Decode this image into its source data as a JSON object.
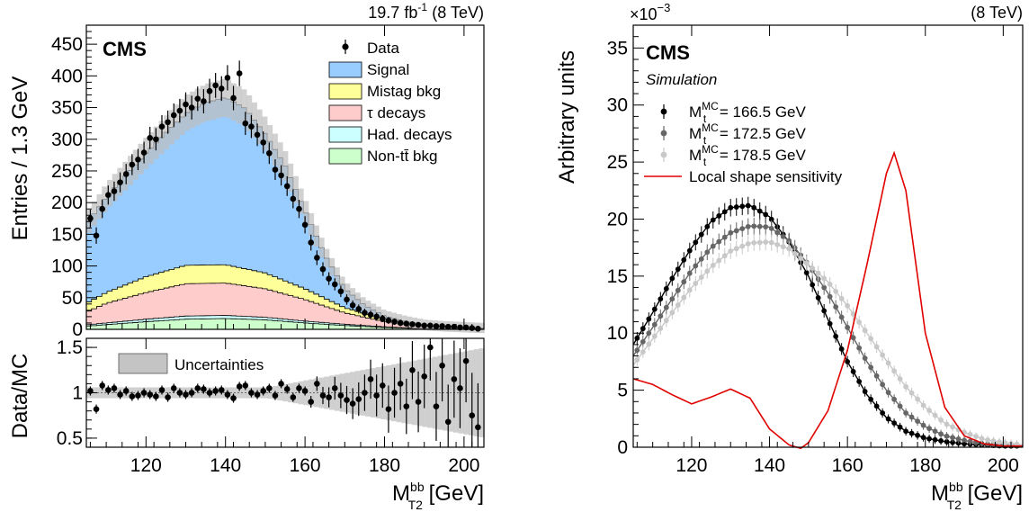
{
  "left": {
    "lumi": "19.7 fb",
    "lumi_sup": "-1",
    "energy": "(8 TeV)",
    "cms": "CMS",
    "ylabel": "Entries / 1.3 GeV",
    "ratio_ylabel": "Data/MC",
    "xlabel_main": "M",
    "xlabel_sup": "bb",
    "xlabel_sub": "T2",
    "xlabel_unit": " [GeV]",
    "ratio_legend": "Uncertainties",
    "legend": [
      {
        "label": "Data",
        "kind": "marker",
        "color": "#000000"
      },
      {
        "label": "Signal",
        "kind": "box",
        "color": "#99ccff"
      },
      {
        "label": "Mistag bkg",
        "kind": "box",
        "color": "#ffff99"
      },
      {
        "label": "τ decays",
        "kind": "box",
        "color": "#ffcccc"
      },
      {
        "label": "Had. decays",
        "kind": "box",
        "color": "#ccffff"
      },
      {
        "label": "Non-tt̄ bkg",
        "kind": "box",
        "color": "#ccffcc"
      }
    ]
  },
  "right": {
    "energy": "(8 TeV)",
    "exponent_base": "×10",
    "exponent_sup": "−3",
    "cms": "CMS",
    "simulation": "Simulation",
    "ylabel": "Arbitrary units",
    "xlabel_main": "M",
    "xlabel_sup": "bb",
    "xlabel_sub": "T2",
    "xlabel_unit": " [GeV]",
    "legend": [
      {
        "pre": "M",
        "sup": "MC",
        "sub": "t",
        "post": " = 166.5 GeV",
        "color": "#000000"
      },
      {
        "pre": "M",
        "sup": "MC",
        "sub": "t",
        "post": " = 172.5 GeV",
        "color": "#666666"
      },
      {
        "pre": "M",
        "sup": "MC",
        "sub": "t",
        "post": " = 178.5 GeV",
        "color": "#c8c8c8"
      },
      {
        "pre": "Local shape sensitivity",
        "sup": "",
        "sub": "",
        "post": "",
        "color": "#e00000"
      }
    ]
  },
  "chart_data": [
    {
      "type": "bar",
      "panel": "main",
      "xlim": [
        105,
        205
      ],
      "ylim": [
        0,
        480
      ],
      "xticks": [
        120,
        140,
        160,
        180,
        200
      ],
      "yticks": [
        0,
        50,
        100,
        150,
        200,
        250,
        300,
        350,
        400,
        450
      ],
      "stack_order": [
        "Non-tt̄ bkg",
        "Had. decays",
        "τ decays",
        "Mistag bkg",
        "Signal"
      ],
      "components": {
        "Non-tt̄ bkg": {
          "color": "#ccffcc",
          "x": [
            105,
            120,
            130,
            140,
            150,
            160,
            170,
            180,
            190,
            205
          ],
          "y": [
            5,
            12,
            16,
            17,
            15,
            10,
            6,
            3,
            1,
            0
          ]
        },
        "Had. decays": {
          "color": "#ccffff",
          "x": [
            105,
            120,
            130,
            140,
            150,
            160,
            170,
            180,
            190,
            205
          ],
          "y": [
            2,
            4,
            5,
            5,
            4,
            3,
            2,
            1,
            0,
            0
          ]
        },
        "τ decays": {
          "color": "#ffcccc",
          "x": [
            105,
            110,
            120,
            130,
            140,
            150,
            160,
            170,
            180,
            190,
            205
          ],
          "y": [
            20,
            31,
            42,
            51,
            51,
            45,
            34,
            18,
            8,
            3,
            1
          ]
        },
        "Mistag bkg": {
          "color": "#ffff99",
          "x": [
            105,
            110,
            120,
            130,
            140,
            150,
            160,
            170,
            180,
            190,
            205
          ],
          "y": [
            14,
            17,
            25,
            29,
            29,
            25,
            17,
            8,
            4,
            2,
            1
          ]
        },
        "Signal": {
          "color": "#99ccff",
          "x": [
            105,
            110,
            115,
            120,
            125,
            130,
            135,
            140,
            145,
            150,
            155,
            160,
            165,
            170,
            175,
            180,
            185,
            190,
            195,
            205
          ],
          "y": [
            124,
            151,
            173,
            195,
            218,
            240,
            256,
            264,
            253,
            219,
            182,
            123,
            68,
            30,
            13,
            5,
            2,
            1,
            0,
            0
          ]
        }
      },
      "data": {
        "name": "Data",
        "x": [
          106,
          107.5,
          109,
          110.5,
          112,
          113.5,
          115,
          116.5,
          118,
          119.5,
          121,
          122.5,
          124,
          125.5,
          127,
          128.5,
          130,
          131.5,
          133,
          134.5,
          136,
          137.5,
          139,
          140.5,
          142,
          143.5,
          145,
          146.5,
          148,
          149.5,
          151,
          152.5,
          154,
          155.5,
          157,
          158.5,
          160,
          161.5,
          163,
          164.5,
          166,
          167.5,
          169,
          170.5,
          172,
          173.5,
          175,
          176.5,
          178,
          179.5,
          181,
          182.5,
          184,
          185.5,
          187,
          188.5,
          190,
          191.5,
          193,
          194.5,
          196,
          197.5,
          199,
          200.5,
          202,
          203.5
        ],
        "y": [
          175,
          148,
          190,
          212,
          218,
          232,
          245,
          260,
          268,
          279,
          302,
          300,
          320,
          327,
          338,
          345,
          355,
          350,
          364,
          360,
          376,
          385,
          380,
          397,
          365,
          404,
          325,
          320,
          307,
          295,
          278,
          252,
          243,
          226,
          206,
          190,
          165,
          137,
          113,
          95,
          80,
          71,
          60,
          47,
          38,
          32,
          26,
          23,
          20,
          17,
          14,
          12,
          10,
          9,
          8,
          7,
          6,
          6,
          5,
          5,
          4,
          4,
          3,
          3,
          2,
          1
        ],
        "err": 14
      }
    },
    {
      "type": "scatter",
      "panel": "ratio",
      "xlim": [
        105,
        205
      ],
      "ylim": [
        0.4,
        1.6
      ],
      "yticks": [
        0.5,
        1,
        1.5
      ],
      "name": "Data/MC",
      "x": [
        106,
        107.5,
        109,
        110.5,
        112,
        113.5,
        115,
        116.5,
        118,
        119.5,
        121,
        122.5,
        124,
        125.5,
        127,
        128.5,
        130,
        131.5,
        133,
        134.5,
        136,
        137.5,
        139,
        140.5,
        142,
        143.5,
        145,
        146.5,
        148,
        149.5,
        151,
        152.5,
        154,
        155.5,
        157,
        158.5,
        160,
        161.5,
        163,
        164.5,
        166,
        167.5,
        169,
        170.5,
        172,
        173.5,
        175,
        176.5,
        178,
        179.5,
        181,
        182.5,
        184,
        185.5,
        187,
        188.5,
        190,
        191.5,
        193,
        194.5,
        196,
        197.5,
        199,
        200.5,
        202,
        203.5
      ],
      "y": [
        1.02,
        0.82,
        1.08,
        1.03,
        1.05,
        0.98,
        1.02,
        0.96,
        0.97,
        1.0,
        0.98,
        0.96,
        1.03,
        0.95,
        1.05,
        1.0,
        0.98,
        1.0,
        1.05,
        1.04,
        1.0,
        1.02,
        1.03,
        0.98,
        0.94,
        1.07,
        1.08,
        1.0,
        0.98,
        1.02,
        1.05,
        0.97,
        1.1,
        1.04,
        0.95,
        1.05,
        1.02,
        0.9,
        1.1,
        0.97,
        0.95,
        1.05,
        0.97,
        0.92,
        0.88,
        0.93,
        1.0,
        1.15,
        0.97,
        1.08,
        0.82,
        1.0,
        1.1,
        0.85,
        1.25,
        0.9,
        1.18,
        1.5,
        0.85,
        1.3,
        0.68,
        1.15,
        1.05,
        1.35,
        0.75,
        0.62
      ]
    },
    {
      "type": "line",
      "panel": "right",
      "xlim": [
        105,
        205
      ],
      "ylim": [
        0,
        0.037
      ],
      "xticks": [
        120,
        140,
        160,
        180,
        200
      ],
      "yticks_scaled": [
        0,
        5,
        10,
        15,
        20,
        25,
        30,
        35
      ],
      "series": [
        {
          "name": "M_t^MC = 166.5 GeV",
          "color": "#000000",
          "x": [
            105,
            110,
            115,
            120,
            125,
            130,
            135,
            140,
            145,
            150,
            155,
            160,
            165,
            170,
            175,
            180,
            185,
            190,
            195,
            200,
            205
          ],
          "y": [
            9.0,
            11.8,
            14.8,
            17.5,
            19.8,
            21.0,
            21.2,
            20.2,
            18.0,
            15.0,
            11.2,
            7.5,
            4.6,
            2.6,
            1.4,
            0.8,
            0.5,
            0.3,
            0.2,
            0.1,
            0.1
          ]
        },
        {
          "name": "M_t^MC = 172.5 GeV",
          "color": "#666666",
          "x": [
            105,
            110,
            115,
            120,
            125,
            130,
            135,
            140,
            145,
            150,
            155,
            160,
            165,
            170,
            175,
            180,
            185,
            190,
            195,
            200,
            205
          ],
          "y": [
            8.0,
            10.5,
            13.0,
            15.5,
            17.5,
            18.8,
            19.4,
            19.3,
            18.1,
            16.0,
            13.5,
            10.5,
            7.5,
            5.0,
            3.0,
            1.8,
            1.0,
            0.6,
            0.3,
            0.2,
            0.1
          ]
        },
        {
          "name": "M_t^MC = 178.5 GeV",
          "color": "#c8c8c8",
          "x": [
            105,
            110,
            115,
            120,
            125,
            130,
            135,
            140,
            145,
            150,
            155,
            160,
            165,
            170,
            175,
            180,
            185,
            190,
            195,
            200,
            205
          ],
          "y": [
            7.2,
            9.5,
            11.8,
            14.0,
            15.8,
            17.2,
            17.9,
            18.0,
            17.4,
            16.0,
            14.5,
            12.4,
            10.0,
            7.6,
            5.3,
            3.5,
            2.1,
            1.3,
            0.7,
            0.4,
            0.2
          ]
        },
        {
          "name": "Local shape sensitivity",
          "color": "#e00000",
          "x": [
            105,
            110,
            115,
            120,
            125,
            130,
            135,
            140,
            145,
            148,
            150,
            155,
            160,
            165,
            170,
            172,
            175,
            180,
            185,
            190,
            195,
            200,
            205
          ],
          "y": [
            6.0,
            5.5,
            4.6,
            3.8,
            4.4,
            5.1,
            4.3,
            1.6,
            0.2,
            -0.1,
            0.4,
            3.2,
            8.5,
            16.0,
            24.0,
            25.8,
            22.5,
            10.0,
            3.5,
            1.0,
            0.3,
            0.1,
            0.1
          ]
        }
      ]
    }
  ]
}
